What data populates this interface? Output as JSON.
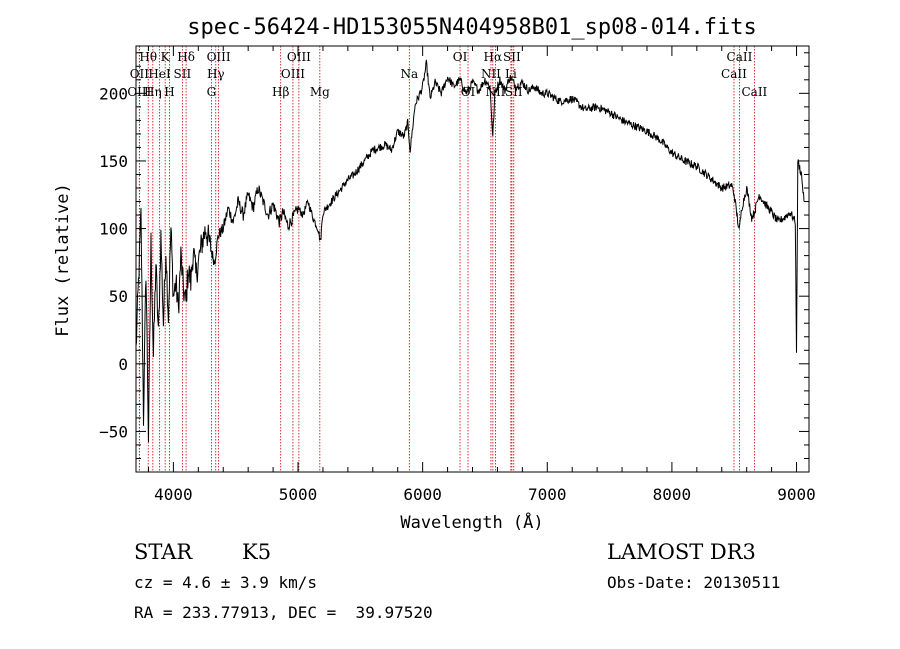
{
  "chart_data": {
    "type": "line",
    "title": "spec-56424-HD153055N404958B01_sp08-014.fits",
    "xlabel": "Wavelength (Å)",
    "ylabel": "Flux (relative)",
    "xlim": [
      3700,
      9100
    ],
    "ylim": [
      -80,
      235
    ],
    "x_ticks": [
      4000,
      5000,
      6000,
      7000,
      8000,
      9000
    ],
    "y_ticks": [
      -50,
      0,
      50,
      100,
      150,
      200
    ],
    "x_tick_labels": [
      "4000",
      "5000",
      "6000",
      "7000",
      "8000",
      "9000"
    ],
    "y_tick_labels": [
      "−50",
      "0",
      "50",
      "100",
      "150",
      "200"
    ],
    "grid": false,
    "legend": "none",
    "series_color": "#000000",
    "line_color": "#cc0000",
    "spectrum": [
      [
        3700,
        10
      ],
      [
        3720,
        60
      ],
      [
        3740,
        110
      ],
      [
        3760,
        -40
      ],
      [
        3780,
        70
      ],
      [
        3800,
        -55
      ],
      [
        3820,
        90
      ],
      [
        3840,
        5
      ],
      [
        3860,
        75
      ],
      [
        3880,
        20
      ],
      [
        3900,
        95
      ],
      [
        3920,
        30
      ],
      [
        3940,
        85
      ],
      [
        3960,
        35
      ],
      [
        3980,
        100
      ],
      [
        4000,
        50
      ],
      [
        4020,
        60
      ],
      [
        4040,
        40
      ],
      [
        4060,
        80
      ],
      [
        4080,
        55
      ],
      [
        4100,
        45
      ],
      [
        4120,
        70
      ],
      [
        4140,
        60
      ],
      [
        4160,
        85
      ],
      [
        4180,
        65
      ],
      [
        4200,
        75
      ],
      [
        4230,
        90
      ],
      [
        4260,
        100
      ],
      [
        4300,
        85
      ],
      [
        4330,
        75
      ],
      [
        4360,
        95
      ],
      [
        4400,
        100
      ],
      [
        4440,
        115
      ],
      [
        4480,
        105
      ],
      [
        4520,
        120
      ],
      [
        4560,
        110
      ],
      [
        4600,
        125
      ],
      [
        4640,
        115
      ],
      [
        4680,
        130
      ],
      [
        4720,
        120
      ],
      [
        4760,
        110
      ],
      [
        4800,
        118
      ],
      [
        4850,
        105
      ],
      [
        4880,
        112
      ],
      [
        4920,
        102
      ],
      [
        4960,
        108
      ],
      [
        5000,
        115
      ],
      [
        5040,
        110
      ],
      [
        5080,
        120
      ],
      [
        5120,
        108
      ],
      [
        5160,
        100
      ],
      [
        5180,
        90
      ],
      [
        5200,
        112
      ],
      [
        5250,
        118
      ],
      [
        5300,
        124
      ],
      [
        5350,
        130
      ],
      [
        5400,
        136
      ],
      [
        5450,
        140
      ],
      [
        5500,
        146
      ],
      [
        5550,
        152
      ],
      [
        5600,
        158
      ],
      [
        5650,
        160
      ],
      [
        5700,
        162
      ],
      [
        5750,
        158
      ],
      [
        5800,
        172
      ],
      [
        5850,
        168
      ],
      [
        5880,
        178
      ],
      [
        5900,
        158
      ],
      [
        5940,
        192
      ],
      [
        5980,
        200
      ],
      [
        6000,
        205
      ],
      [
        6030,
        222
      ],
      [
        6060,
        196
      ],
      [
        6100,
        208
      ],
      [
        6150,
        200
      ],
      [
        6200,
        212
      ],
      [
        6250,
        205
      ],
      [
        6300,
        210
      ],
      [
        6350,
        200
      ],
      [
        6400,
        208
      ],
      [
        6450,
        202
      ],
      [
        6500,
        210
      ],
      [
        6540,
        205
      ],
      [
        6563,
        168
      ],
      [
        6580,
        200
      ],
      [
        6620,
        210
      ],
      [
        6660,
        202
      ],
      [
        6700,
        212
      ],
      [
        6750,
        205
      ],
      [
        6800,
        208
      ],
      [
        6850,
        202
      ],
      [
        6900,
        205
      ],
      [
        6950,
        200
      ],
      [
        7000,
        200
      ],
      [
        7100,
        194
      ],
      [
        7200,
        196
      ],
      [
        7300,
        188
      ],
      [
        7400,
        190
      ],
      [
        7500,
        186
      ],
      [
        7600,
        180
      ],
      [
        7700,
        176
      ],
      [
        7800,
        172
      ],
      [
        7900,
        166
      ],
      [
        8000,
        156
      ],
      [
        8100,
        150
      ],
      [
        8200,
        146
      ],
      [
        8300,
        138
      ],
      [
        8400,
        130
      ],
      [
        8480,
        132
      ],
      [
        8500,
        125
      ],
      [
        8540,
        98
      ],
      [
        8560,
        115
      ],
      [
        8600,
        130
      ],
      [
        8640,
        108
      ],
      [
        8662,
        112
      ],
      [
        8700,
        125
      ],
      [
        8750,
        118
      ],
      [
        8800,
        112
      ],
      [
        8850,
        105
      ],
      [
        8900,
        108
      ],
      [
        8950,
        112
      ],
      [
        8990,
        105
      ],
      [
        9000,
        10
      ],
      [
        9010,
        150
      ],
      [
        9040,
        140
      ],
      [
        9060,
        120
      ]
    ],
    "lines": [
      {
        "label": "Hθ",
        "x": 3798,
        "row": 0
      },
      {
        "label": "OII",
        "x": 3727,
        "row": 1
      },
      {
        "label": "OIII",
        "x": 3727,
        "row": 2
      },
      {
        "label": "K",
        "x": 3934,
        "row": 0
      },
      {
        "label": "HeI",
        "x": 3889,
        "row": 1
      },
      {
        "label": "Hη",
        "x": 3835,
        "row": 2
      },
      {
        "label": "Hδ",
        "x": 4102,
        "row": 0
      },
      {
        "label": "SII",
        "x": 4072,
        "row": 1
      },
      {
        "label": "H",
        "x": 3969,
        "row": 2
      },
      {
        "label": "OIII",
        "x": 4363,
        "row": 0
      },
      {
        "label": "Hγ",
        "x": 4340,
        "row": 1
      },
      {
        "label": "G",
        "x": 4305,
        "row": 2
      },
      {
        "label": "OIII",
        "x": 5007,
        "row": 0
      },
      {
        "label": "OIII",
        "x": 4959,
        "row": 1
      },
      {
        "label": "Hβ",
        "x": 4861,
        "row": 2
      },
      {
        "label": "Mg",
        "x": 5175,
        "row": 2
      },
      {
        "label": "Na",
        "x": 5893,
        "row": 1
      },
      {
        "label": "OI",
        "x": 6300,
        "row": 0
      },
      {
        "label": "OI",
        "x": 6364,
        "row": 2
      },
      {
        "label": "Hα",
        "x": 6563,
        "row": 0
      },
      {
        "label": "SII",
        "x": 6716,
        "row": 0
      },
      {
        "label": "NII",
        "x": 6548,
        "row": 1
      },
      {
        "label": "Li",
        "x": 6708,
        "row": 1
      },
      {
        "label": "NII",
        "x": 6584,
        "row": 2
      },
      {
        "label": "SII",
        "x": 6731,
        "row": 2
      },
      {
        "label": "CaII",
        "x": 8542,
        "row": 0
      },
      {
        "label": "CaII",
        "x": 8498,
        "row": 1
      },
      {
        "label": "CaII",
        "x": 8662,
        "row": 2
      }
    ]
  },
  "info": {
    "object_type": "STAR",
    "subclass": "K5",
    "survey": "LAMOST DR3",
    "cz": "cz = 4.6 ± 3.9 km/s",
    "obs_date": "Obs-Date: 20130511",
    "coords": "RA = 233.77913, DEC =  39.97520"
  }
}
